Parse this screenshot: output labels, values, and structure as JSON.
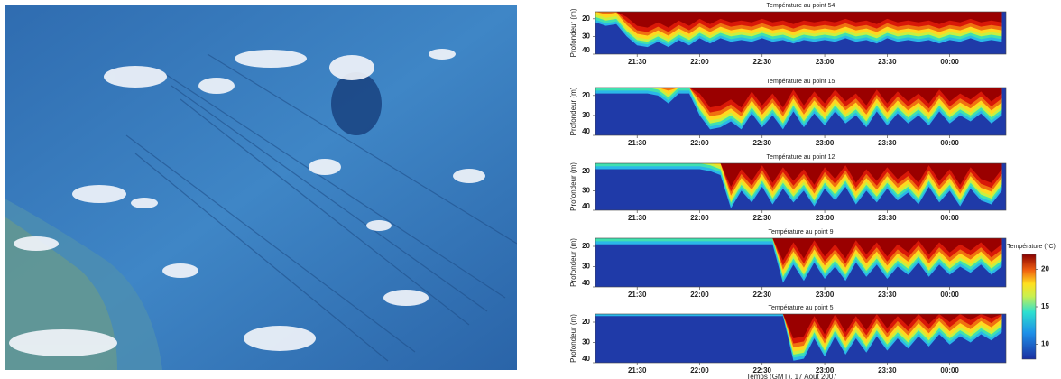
{
  "chart_data": [
    {
      "type": "heatmap",
      "title": "Température au point 54",
      "ylabel": "Profondeur (m)",
      "x": [
        1270,
        1275,
        1280,
        1285,
        1290,
        1295,
        1300,
        1305,
        1310,
        1315,
        1320,
        1325,
        1330,
        1335,
        1340,
        1345,
        1350,
        1355,
        1360,
        1365,
        1370,
        1375,
        1380,
        1385,
        1390,
        1395,
        1400,
        1405,
        1410,
        1415,
        1420,
        1425,
        1430,
        1435,
        1440,
        1445,
        1450,
        1455,
        1460,
        1465
      ],
      "values": [
        22,
        24,
        23,
        30,
        35,
        36,
        33,
        36,
        32,
        35,
        31,
        34,
        31,
        33,
        32,
        33,
        31,
        33,
        32,
        34,
        32,
        33,
        32,
        33,
        31,
        33,
        32,
        34,
        31,
        33,
        32,
        33,
        32,
        34,
        32,
        33,
        31,
        33,
        32,
        33
      ],
      "xlim": [
        1270,
        1467
      ],
      "ylim": [
        16,
        40
      ],
      "yticks": [
        20,
        30,
        40
      ],
      "xticks": [
        {
          "value": 1290,
          "label": "21:30"
        },
        {
          "value": 1320,
          "label": "22:00"
        },
        {
          "value": 1350,
          "label": "22:30"
        },
        {
          "value": 1380,
          "label": "23:00"
        },
        {
          "value": 1410,
          "label": "23:30"
        },
        {
          "value": 1440,
          "label": "00:00"
        }
      ]
    },
    {
      "type": "heatmap",
      "title": "Température au point 15",
      "ylabel": "Profondeur (m)",
      "x": [
        1270,
        1275,
        1280,
        1285,
        1290,
        1295,
        1300,
        1305,
        1310,
        1315,
        1320,
        1325,
        1330,
        1335,
        1340,
        1345,
        1350,
        1355,
        1360,
        1365,
        1370,
        1375,
        1380,
        1385,
        1390,
        1395,
        1400,
        1405,
        1410,
        1415,
        1420,
        1425,
        1430,
        1435,
        1440,
        1445,
        1450,
        1455,
        1460,
        1465
      ],
      "values": [
        19,
        19,
        19,
        19,
        19,
        19,
        20,
        24,
        19,
        19,
        30,
        37,
        36,
        33,
        37,
        29,
        36,
        30,
        37,
        28,
        36,
        29,
        35,
        28,
        34,
        30,
        36,
        28,
        35,
        29,
        34,
        30,
        35,
        28,
        34,
        30,
        33,
        29,
        34,
        30
      ],
      "xlim": [
        1270,
        1467
      ],
      "ylim": [
        16,
        40
      ],
      "yticks": [
        20,
        30,
        40
      ],
      "xticks": [
        {
          "value": 1290,
          "label": "21:30"
        },
        {
          "value": 1320,
          "label": "22:00"
        },
        {
          "value": 1350,
          "label": "22:30"
        },
        {
          "value": 1380,
          "label": "23:00"
        },
        {
          "value": 1410,
          "label": "23:30"
        },
        {
          "value": 1440,
          "label": "00:00"
        }
      ]
    },
    {
      "type": "heatmap",
      "title": "Température au point 12",
      "ylabel": "Profondeur (m)",
      "x": [
        1270,
        1275,
        1280,
        1285,
        1290,
        1295,
        1300,
        1305,
        1310,
        1315,
        1320,
        1325,
        1330,
        1335,
        1340,
        1345,
        1350,
        1355,
        1360,
        1365,
        1370,
        1375,
        1380,
        1385,
        1390,
        1395,
        1400,
        1405,
        1410,
        1415,
        1420,
        1425,
        1430,
        1435,
        1440,
        1445,
        1450,
        1455,
        1460,
        1465
      ],
      "values": [
        19,
        19,
        19,
        19,
        19,
        19,
        19,
        19,
        19,
        19,
        19,
        20,
        22,
        39,
        30,
        36,
        28,
        37,
        29,
        36,
        30,
        38,
        29,
        35,
        28,
        37,
        30,
        36,
        29,
        35,
        31,
        37,
        28,
        36,
        30,
        38,
        29,
        35,
        37,
        30
      ],
      "xlim": [
        1270,
        1467
      ],
      "ylim": [
        16,
        40
      ],
      "yticks": [
        20,
        30,
        40
      ],
      "xticks": [
        {
          "value": 1290,
          "label": "21:30"
        },
        {
          "value": 1320,
          "label": "22:00"
        },
        {
          "value": 1350,
          "label": "22:30"
        },
        {
          "value": 1380,
          "label": "23:00"
        },
        {
          "value": 1410,
          "label": "23:30"
        },
        {
          "value": 1440,
          "label": "00:00"
        }
      ]
    },
    {
      "type": "heatmap",
      "title": "Température au point 9",
      "ylabel": "Profondeur (m)",
      "x": [
        1270,
        1275,
        1280,
        1285,
        1290,
        1295,
        1300,
        1305,
        1310,
        1315,
        1320,
        1325,
        1330,
        1335,
        1340,
        1345,
        1350,
        1355,
        1360,
        1365,
        1370,
        1375,
        1380,
        1385,
        1390,
        1395,
        1400,
        1405,
        1410,
        1415,
        1420,
        1425,
        1430,
        1435,
        1440,
        1445,
        1450,
        1455,
        1460,
        1465
      ],
      "values": [
        19,
        19,
        19,
        19,
        19,
        19,
        19,
        19,
        19,
        19,
        19,
        19,
        19,
        19,
        19,
        19,
        19,
        19,
        38,
        29,
        37,
        28,
        36,
        30,
        37,
        28,
        35,
        29,
        36,
        30,
        34,
        28,
        35,
        29,
        34,
        30,
        33,
        29,
        34,
        30
      ],
      "xlim": [
        1270,
        1467
      ],
      "ylim": [
        16,
        40
      ],
      "yticks": [
        20,
        30,
        40
      ],
      "xticks": [
        {
          "value": 1290,
          "label": "21:30"
        },
        {
          "value": 1320,
          "label": "22:00"
        },
        {
          "value": 1350,
          "label": "22:30"
        },
        {
          "value": 1380,
          "label": "23:00"
        },
        {
          "value": 1410,
          "label": "23:30"
        },
        {
          "value": 1440,
          "label": "00:00"
        }
      ]
    },
    {
      "type": "heatmap",
      "title": "Température au point 5",
      "ylabel": "Profondeur (m)",
      "xlabel": "Temps (GMT), 17 Aout 2007",
      "x": [
        1270,
        1275,
        1280,
        1285,
        1290,
        1295,
        1300,
        1305,
        1310,
        1315,
        1320,
        1325,
        1330,
        1335,
        1340,
        1345,
        1350,
        1355,
        1360,
        1365,
        1370,
        1375,
        1380,
        1385,
        1390,
        1395,
        1400,
        1405,
        1410,
        1415,
        1420,
        1425,
        1430,
        1435,
        1440,
        1445,
        1450,
        1455,
        1460,
        1465
      ],
      "values": [
        17,
        17,
        17,
        17,
        17,
        17,
        17,
        17,
        17,
        17,
        17,
        17,
        17,
        17,
        17,
        17,
        17,
        17,
        17,
        39,
        38,
        28,
        37,
        27,
        36,
        28,
        35,
        27,
        34,
        28,
        33,
        27,
        32,
        26,
        31,
        27,
        30,
        26,
        29,
        25
      ],
      "xlim": [
        1270,
        1467
      ],
      "ylim": [
        16,
        40
      ],
      "yticks": [
        20,
        30,
        40
      ],
      "xticks": [
        {
          "value": 1290,
          "label": "21:30"
        },
        {
          "value": 1320,
          "label": "22:00"
        },
        {
          "value": 1350,
          "label": "22:30"
        },
        {
          "value": 1380,
          "label": "23:00"
        },
        {
          "value": 1410,
          "label": "23:30"
        },
        {
          "value": 1440,
          "label": "00:00"
        }
      ]
    }
  ],
  "colorbar": {
    "title": "Température (°C)",
    "lim": [
      8,
      22
    ],
    "ticks": [
      10,
      15,
      20
    ]
  }
}
